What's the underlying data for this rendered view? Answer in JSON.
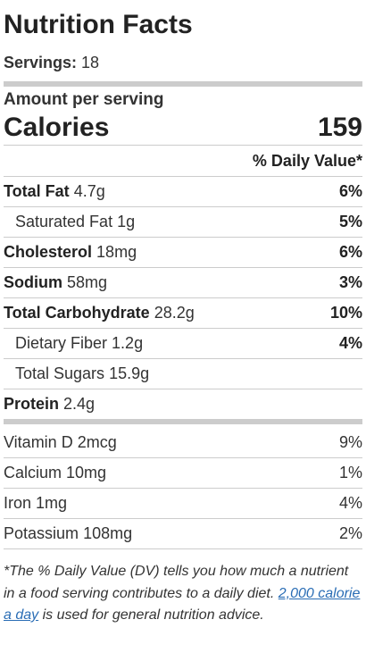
{
  "header": {
    "title": "Nutrition Facts",
    "servings_label": "Servings:",
    "servings_value": "18"
  },
  "calories": {
    "amount_label": "Amount per serving",
    "label": "Calories",
    "value": "159"
  },
  "dv_header": "% Daily Value*",
  "nutrients": [
    {
      "name": "Total Fat",
      "amount": "4.7g",
      "dv": "6%"
    },
    {
      "name": "Saturated Fat",
      "amount": "1g",
      "dv": "5%"
    },
    {
      "name": "Cholesterol",
      "amount": "18mg",
      "dv": "6%"
    },
    {
      "name": "Sodium",
      "amount": "58mg",
      "dv": "3%"
    },
    {
      "name": "Total Carbohydrate",
      "amount": "28.2g",
      "dv": "10%"
    },
    {
      "name": "Dietary Fiber",
      "amount": "1.2g",
      "dv": "4%"
    },
    {
      "name": "Total Sugars",
      "amount": "15.9g"
    },
    {
      "name": "Protein",
      "amount": "2.4g"
    }
  ],
  "vitamins": [
    {
      "name": "Vitamin D",
      "amount": "2mcg",
      "dv": "9%"
    },
    {
      "name": "Calcium",
      "amount": "10mg",
      "dv": "1%"
    },
    {
      "name": "Iron",
      "amount": "1mg",
      "dv": "4%"
    },
    {
      "name": "Potassium",
      "amount": "108mg",
      "dv": "2%"
    }
  ],
  "footnote": {
    "text_before": "*The % Daily Value (DV) tells you how much a nutrient in a food serving contributes to a daily diet.",
    "link": "2,000 calorie a day",
    "text_after": "is used for general nutrition advice."
  }
}
